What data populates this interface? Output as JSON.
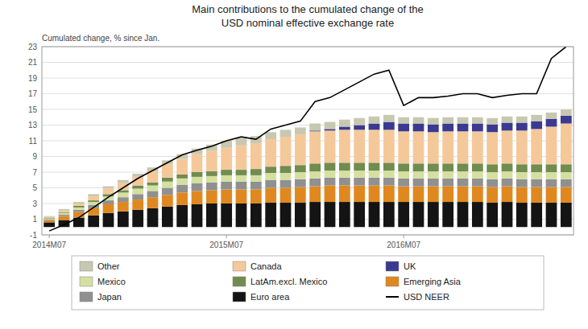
{
  "chart_data": {
    "type": "bar",
    "stacked": true,
    "title": "Main contributions to the cumulated change of the",
    "subtitle": "USD nominal effective exchange rate",
    "y_label": "Cumulated change, % since Jan.",
    "categories": [
      "2014M07",
      null,
      null,
      null,
      null,
      null,
      null,
      null,
      null,
      null,
      null,
      null,
      "2015M07",
      null,
      null,
      null,
      null,
      null,
      null,
      null,
      null,
      null,
      null,
      null,
      "2016M07",
      null,
      null,
      null,
      null,
      null,
      null,
      null,
      null,
      null,
      null,
      null
    ],
    "ylim": [
      -1,
      23
    ],
    "yticks": [
      -1,
      1,
      3,
      5,
      7,
      9,
      11,
      13,
      15,
      17,
      19,
      21,
      23
    ],
    "grid": true,
    "legend": "bottom",
    "series": [
      {
        "name": "Euro area",
        "color": "#141414",
        "values": [
          0.6,
          0.9,
          1.2,
          1.5,
          1.8,
          2.0,
          2.2,
          2.4,
          2.6,
          2.8,
          2.9,
          3.0,
          3.0,
          3.0,
          3.0,
          3.1,
          3.1,
          3.1,
          3.2,
          3.2,
          3.2,
          3.2,
          3.2,
          3.2,
          3.2,
          3.2,
          3.2,
          3.2,
          3.2,
          3.2,
          3.1,
          3.2,
          3.1,
          3.1,
          3.1,
          3.1
        ]
      },
      {
        "name": "Emerging Asia",
        "color": "#e08820",
        "values": [
          0.3,
          0.5,
          0.7,
          0.9,
          1.1,
          1.2,
          1.3,
          1.4,
          1.5,
          1.6,
          1.7,
          1.7,
          1.8,
          1.8,
          1.8,
          1.9,
          1.9,
          2.0,
          2.0,
          2.1,
          2.1,
          2.1,
          2.1,
          2.1,
          2.0,
          2.0,
          2.0,
          2.0,
          2.0,
          2.0,
          2.0,
          2.0,
          2.0,
          2.0,
          2.0,
          2.0
        ]
      },
      {
        "name": "Japan",
        "color": "#909090",
        "values": [
          0.1,
          0.2,
          0.3,
          0.4,
          0.5,
          0.6,
          0.7,
          0.8,
          0.9,
          1.0,
          1.0,
          1.0,
          1.0,
          1.0,
          1.0,
          1.0,
          1.0,
          1.0,
          1.0,
          1.0,
          1.0,
          1.0,
          1.0,
          1.0,
          1.0,
          1.0,
          1.0,
          1.0,
          1.0,
          1.0,
          1.0,
          1.0,
          1.0,
          1.0,
          1.0,
          1.0
        ]
      },
      {
        "name": "Mexico",
        "color": "#d4e0a0",
        "values": [
          0.1,
          0.2,
          0.3,
          0.4,
          0.5,
          0.6,
          0.7,
          0.7,
          0.8,
          0.8,
          0.8,
          0.8,
          0.8,
          0.8,
          0.8,
          0.9,
          0.9,
          0.9,
          0.9,
          0.9,
          0.9,
          0.9,
          0.9,
          0.9,
          0.9,
          0.9,
          0.9,
          0.9,
          0.9,
          0.9,
          0.9,
          0.9,
          0.9,
          0.9,
          0.9,
          0.9
        ]
      },
      {
        "name": "LatAm.excl. Mexico",
        "color": "#708c50",
        "values": [
          0.1,
          0.1,
          0.2,
          0.2,
          0.3,
          0.3,
          0.4,
          0.4,
          0.5,
          0.5,
          0.6,
          0.6,
          0.7,
          0.7,
          0.8,
          0.8,
          0.9,
          0.9,
          1.0,
          1.0,
          1.0,
          1.0,
          1.0,
          1.0,
          1.0,
          1.0,
          1.0,
          1.0,
          1.0,
          1.0,
          1.0,
          1.0,
          1.0,
          1.0,
          1.0,
          1.0
        ]
      },
      {
        "name": "Canada",
        "color": "#f5c89a",
        "values": [
          0.1,
          0.2,
          0.3,
          0.5,
          0.7,
          0.9,
          1.1,
          1.4,
          1.7,
          2.0,
          2.3,
          2.6,
          2.8,
          3.1,
          3.3,
          3.5,
          3.7,
          3.9,
          4.1,
          4.1,
          4.2,
          4.2,
          4.2,
          4.2,
          4.1,
          4.1,
          4.0,
          4.1,
          4.1,
          4.1,
          4.1,
          4.2,
          4.3,
          4.5,
          4.8,
          5.2
        ]
      },
      {
        "name": "UK",
        "color": "#3a3a90",
        "values": [
          0.0,
          0.0,
          0.0,
          0.0,
          0.0,
          0.0,
          0.0,
          0.0,
          0.0,
          0.0,
          0.0,
          0.0,
          0.0,
          0.0,
          0.0,
          0.0,
          0.0,
          0.0,
          0.1,
          0.2,
          0.4,
          0.6,
          0.8,
          1.0,
          1.0,
          1.0,
          1.0,
          1.0,
          1.0,
          1.0,
          1.0,
          1.0,
          1.0,
          1.0,
          1.0,
          1.0
        ]
      },
      {
        "name": "Other",
        "color": "#c8c8b0",
        "values": [
          0.1,
          0.2,
          0.2,
          0.3,
          0.3,
          0.4,
          0.4,
          0.5,
          0.5,
          0.6,
          0.7,
          0.8,
          0.9,
          0.9,
          0.9,
          0.9,
          0.9,
          0.9,
          0.9,
          0.9,
          0.9,
          0.9,
          0.9,
          0.9,
          0.8,
          0.8,
          0.8,
          0.8,
          0.8,
          0.8,
          0.8,
          0.8,
          0.8,
          0.8,
          0.8,
          0.8
        ]
      },
      {
        "name": "USD NEER",
        "type": "line",
        "color": "#000000",
        "values": [
          -0.5,
          0.3,
          1.2,
          2.5,
          3.8,
          5.0,
          6.2,
          7.2,
          8.2,
          9.2,
          9.8,
          10.3,
          11.0,
          11.5,
          11.2,
          12.5,
          13.0,
          13.5,
          16.0,
          16.5,
          17.5,
          18.5,
          19.5,
          20.0,
          15.5,
          16.5,
          16.5,
          16.7,
          17.0,
          17.0,
          16.5,
          16.8,
          17.0,
          17.0,
          21.5,
          23.0
        ]
      }
    ]
  }
}
